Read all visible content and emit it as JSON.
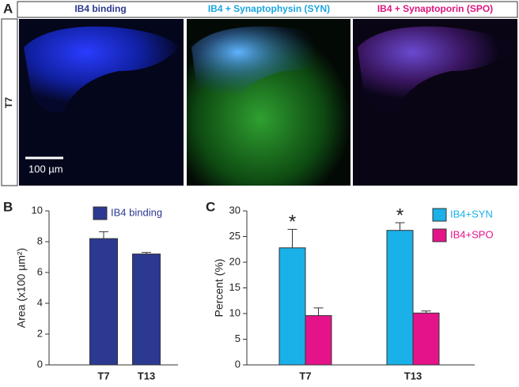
{
  "panel_labels": [
    "A",
    "B",
    "C"
  ],
  "figure": {
    "headers": [
      "IB4 binding",
      "IB4 + Synaptophysin (SYN)",
      "IB4 + Synaptoporin (SPO)"
    ],
    "row_label": "T7",
    "scale_bar": "100 µm"
  },
  "chart_data": [
    {
      "type": "bar",
      "ylabel": "Area (x100 µm²)",
      "categories": [
        "T7",
        "T13"
      ],
      "series": [
        {
          "name": "IB4 binding",
          "color": "#2b3990",
          "values": [
            8.2,
            7.2
          ],
          "errors": [
            0.45,
            0.1
          ]
        }
      ],
      "ylim": [
        0,
        10
      ],
      "yticks": [
        0,
        2,
        4,
        6,
        8,
        10
      ]
    },
    {
      "type": "bar",
      "ylabel": "Percent (%)",
      "categories": [
        "T7",
        "T13"
      ],
      "series": [
        {
          "name": "IB4+SYN",
          "color": "#1ab0e8",
          "values": [
            22.8,
            26.2
          ],
          "errors": [
            3.6,
            1.5
          ]
        },
        {
          "name": "IB4+SPO",
          "color": "#e5138a",
          "values": [
            9.6,
            10.1
          ],
          "errors": [
            1.5,
            0.4
          ]
        }
      ],
      "significance_marks": [
        "*",
        "*"
      ],
      "ylim": [
        0,
        30
      ],
      "yticks": [
        0,
        5,
        10,
        15,
        20,
        25,
        30
      ]
    }
  ]
}
